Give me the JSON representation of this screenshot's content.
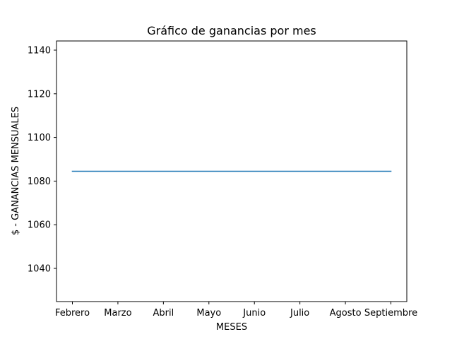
{
  "chart_data": {
    "type": "line",
    "title": "Gráfico de ganancias por mes",
    "xlabel": "MESES",
    "ylabel": "$ - GANANCIAS MENSUALES",
    "categories": [
      "Febrero",
      "Marzo",
      "Abril",
      "Mayo",
      "Junio",
      "Julio",
      "Agosto",
      "Septiembre"
    ],
    "series": [
      {
        "values": [
          1084.5,
          1084.5,
          1084.5,
          1084.5,
          1084.5,
          1084.5,
          1084.5,
          1084.5
        ],
        "color": "#1f77b4"
      }
    ],
    "yticks": [
      1040,
      1060,
      1080,
      1100,
      1120,
      1140
    ],
    "ylim": [
      1024.8,
      1144.2
    ],
    "grid": false,
    "legend": "none"
  }
}
